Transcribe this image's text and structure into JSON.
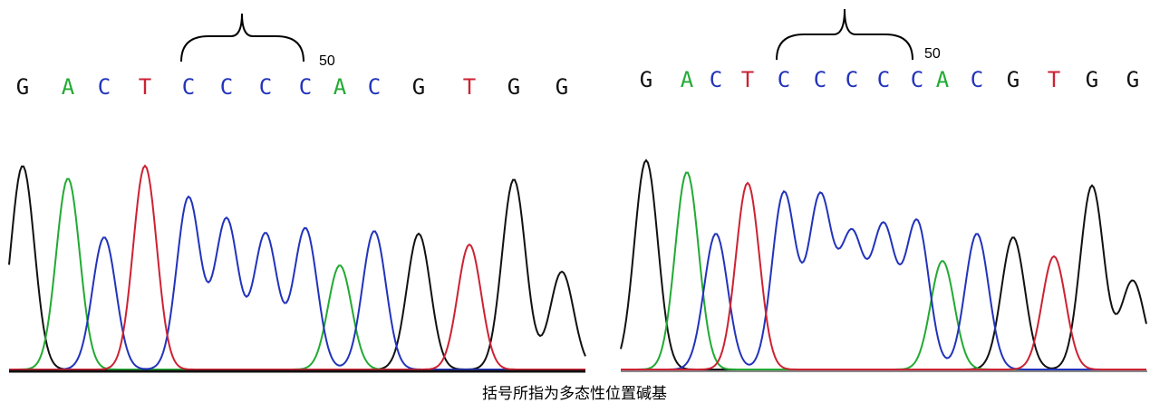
{
  "panels": [
    {
      "bases": [
        "G",
        "A",
        "C",
        "T",
        "C",
        "C",
        "C",
        "C",
        "A",
        "C",
        "G",
        "T",
        "G",
        "G"
      ],
      "position_label": "50"
    },
    {
      "bases": [
        "G",
        "A",
        "C",
        "T",
        "C",
        "C",
        "C",
        "C",
        "C",
        "A",
        "C",
        "G",
        "T",
        "G",
        "G"
      ],
      "position_label": "50"
    }
  ],
  "base_colors": {
    "G": "#111111",
    "A": "#22aa33",
    "C": "#2233bb",
    "T": "#cc2233"
  },
  "caption": "括号所指为多态性位置碱基"
}
